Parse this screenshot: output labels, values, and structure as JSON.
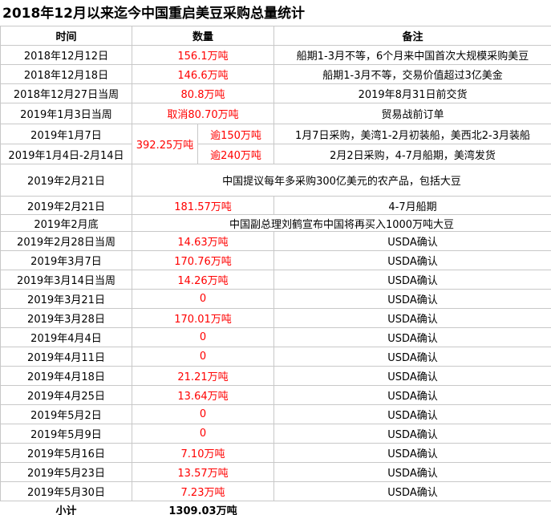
{
  "title": "2018年12月以来迄今中国重启美豆采购总量统计",
  "headers": {
    "time": "时间",
    "qty": "数量",
    "note": "备注"
  },
  "colors": {
    "quantity": "#ff0000",
    "border": "#c8c8c8"
  },
  "rows": [
    {
      "time": "2018年12月12日",
      "qty": "156.1万吨",
      "note": "船期1-3月不等，6个月来中国首次大规模采购美豆"
    },
    {
      "time": "2018年12月18日",
      "qty": "146.6万吨",
      "note": "船期1-3月不等，交易价值超过3亿美金"
    },
    {
      "time": "2018年12月27日当周",
      "qty": "80.8万吨",
      "note": "2019年8月31日前交货"
    },
    {
      "time": "2019年1月3日当周",
      "qty": "取消80.70万吨",
      "note": "贸易战前订单"
    }
  ],
  "split": {
    "total": "392.25万吨",
    "rows": [
      {
        "time": "2019年1月7日",
        "qty": "逾150万吨",
        "note": "1月7日采购，美湾1-2月初装船，美西北2-3月装船"
      },
      {
        "time": "2019年1月4日-2月14日",
        "qty": "逾240万吨",
        "note": "2月2日采购，4-7月船期，美湾发货"
      }
    ]
  },
  "proposal": {
    "time": "2019年2月21日",
    "note": "中国提议每年多采购300亿美元的农产品，包括大豆"
  },
  "row_0221": {
    "time": "2019年2月21日",
    "qty": "181.57万吨",
    "note": "4-7月船期"
  },
  "announce": {
    "time": "2019年2月底",
    "note": "中国副总理刘鹤宣布中国将再买入1000万吨大豆"
  },
  "usda_rows": [
    {
      "time": "2019年2月28日当周",
      "qty": "14.63万吨",
      "note": "USDA确认"
    },
    {
      "time": "2019年3月7日",
      "qty": "170.76万吨",
      "note": "USDA确认"
    },
    {
      "time": "2019年3月14日当周",
      "qty": "14.26万吨",
      "note": "USDA确认"
    },
    {
      "time": "2019年3月21日",
      "qty": "0",
      "note": "USDA确认"
    },
    {
      "time": "2019年3月28日",
      "qty": "170.01万吨",
      "note": "USDA确认"
    },
    {
      "time": "2019年4月4日",
      "qty": "0",
      "note": "USDA确认"
    },
    {
      "time": "2019年4月11日",
      "qty": "0",
      "note": "USDA确认"
    },
    {
      "time": "2019年4月18日",
      "qty": "21.21万吨",
      "note": "USDA确认"
    },
    {
      "time": "2019年4月25日",
      "qty": "13.64万吨",
      "note": "USDA确认"
    },
    {
      "time": "2019年5月2日",
      "qty": "0",
      "note": "USDA确认"
    },
    {
      "time": "2019年5月9日",
      "qty": "0",
      "note": "USDA确认"
    },
    {
      "time": "2019年5月16日",
      "qty": "7.10万吨",
      "note": "USDA确认"
    },
    {
      "time": "2019年5月23日",
      "qty": "13.57万吨",
      "note": "USDA确认"
    },
    {
      "time": "2019年5月30日",
      "qty": "7.23万吨",
      "note": "USDA确认"
    }
  ],
  "subtotal": {
    "label": "小计",
    "value": "1309.03万吨"
  }
}
